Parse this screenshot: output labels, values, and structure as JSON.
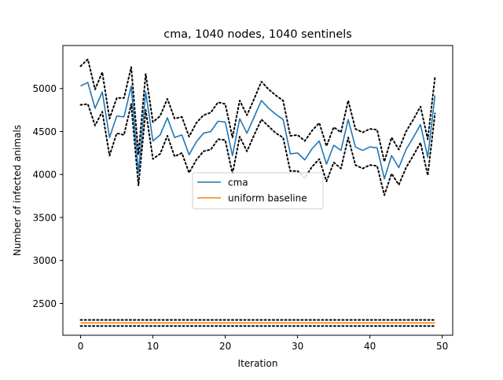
{
  "chart_data": {
    "type": "line",
    "title": "cma, 1040 nodes, 1040 sentinels",
    "xlabel": "Iteration",
    "ylabel": "Number of infected animals",
    "xlim": [
      -2.45,
      51.45
    ],
    "ylim": [
      2130,
      5500
    ],
    "xticks": [
      0,
      10,
      20,
      30,
      40,
      50
    ],
    "yticks": [
      2500,
      3000,
      3500,
      4000,
      4500,
      5000
    ],
    "legend": {
      "placement": "center",
      "entries": [
        "cma",
        "uniform baseline"
      ]
    },
    "colors": {
      "cma": "#1f77b4",
      "uniform baseline": "#ff7f0e",
      "bounds": "#000000"
    },
    "x": [
      0,
      1,
      2,
      3,
      4,
      5,
      6,
      7,
      8,
      9,
      10,
      11,
      12,
      13,
      14,
      15,
      16,
      17,
      18,
      19,
      20,
      21,
      22,
      23,
      24,
      25,
      26,
      27,
      28,
      29,
      30,
      31,
      32,
      33,
      34,
      35,
      36,
      37,
      38,
      39,
      40,
      41,
      42,
      43,
      44,
      45,
      46,
      47,
      48,
      49
    ],
    "series": [
      {
        "name": "cma",
        "style": "solid",
        "color": "#1f77b4",
        "values": [
          5030,
          5070,
          4770,
          4960,
          4430,
          4680,
          4670,
          5030,
          4020,
          4960,
          4390,
          4460,
          4660,
          4430,
          4460,
          4230,
          4380,
          4480,
          4500,
          4620,
          4610,
          4220,
          4650,
          4480,
          4670,
          4860,
          4770,
          4700,
          4640,
          4240,
          4250,
          4170,
          4300,
          4390,
          4120,
          4340,
          4280,
          4640,
          4320,
          4280,
          4320,
          4310,
          3950,
          4220,
          4080,
          4290,
          4430,
          4580,
          4200,
          4920
        ]
      },
      {
        "name": "cma upper bound",
        "style": "dotted",
        "color": "#000000",
        "values": [
          5260,
          5340,
          4990,
          5190,
          4650,
          4890,
          4890,
          5250,
          4230,
          5170,
          4610,
          4680,
          4880,
          4650,
          4670,
          4440,
          4600,
          4690,
          4720,
          4840,
          4820,
          4430,
          4860,
          4690,
          4880,
          5080,
          4990,
          4920,
          4860,
          4450,
          4460,
          4390,
          4510,
          4600,
          4330,
          4550,
          4490,
          4860,
          4530,
          4490,
          4530,
          4520,
          4150,
          4430,
          4290,
          4500,
          4640,
          4790,
          4410,
          5130
        ]
      },
      {
        "name": "cma lower bound",
        "style": "dotted",
        "color": "#000000",
        "values": [
          4810,
          4820,
          4570,
          4730,
          4220,
          4480,
          4460,
          4820,
          3870,
          4750,
          4180,
          4240,
          4450,
          4210,
          4250,
          4020,
          4170,
          4270,
          4290,
          4410,
          4400,
          4010,
          4440,
          4270,
          4460,
          4640,
          4560,
          4480,
          4430,
          4040,
          4040,
          3960,
          4090,
          4180,
          3920,
          4140,
          4070,
          4430,
          4110,
          4070,
          4110,
          4100,
          3760,
          4010,
          3880,
          4080,
          4220,
          4370,
          3990,
          4710
        ]
      },
      {
        "name": "uniform baseline",
        "style": "solid",
        "color": "#ff7f0e",
        "values": [
          2273,
          2273,
          2273,
          2273,
          2273,
          2273,
          2273,
          2273,
          2273,
          2273,
          2273,
          2273,
          2273,
          2273,
          2273,
          2273,
          2273,
          2273,
          2273,
          2273,
          2273,
          2273,
          2273,
          2273,
          2273,
          2273,
          2273,
          2273,
          2273,
          2273,
          2273,
          2273,
          2273,
          2273,
          2273,
          2273,
          2273,
          2273,
          2273,
          2273,
          2273,
          2273,
          2273,
          2273,
          2273,
          2273,
          2273,
          2273,
          2273,
          2273
        ]
      },
      {
        "name": "uniform baseline upper bound",
        "style": "dotted",
        "color": "#000000",
        "values": [
          2308,
          2308,
          2308,
          2308,
          2308,
          2308,
          2308,
          2308,
          2308,
          2308,
          2308,
          2308,
          2308,
          2308,
          2308,
          2308,
          2308,
          2308,
          2308,
          2308,
          2308,
          2308,
          2308,
          2308,
          2308,
          2308,
          2308,
          2308,
          2308,
          2308,
          2308,
          2308,
          2308,
          2308,
          2308,
          2308,
          2308,
          2308,
          2308,
          2308,
          2308,
          2308,
          2308,
          2308,
          2308,
          2308,
          2308,
          2308,
          2308,
          2308
        ]
      },
      {
        "name": "uniform baseline lower bound",
        "style": "dotted",
        "color": "#000000",
        "values": [
          2237,
          2237,
          2237,
          2237,
          2237,
          2237,
          2237,
          2237,
          2237,
          2237,
          2237,
          2237,
          2237,
          2237,
          2237,
          2237,
          2237,
          2237,
          2237,
          2237,
          2237,
          2237,
          2237,
          2237,
          2237,
          2237,
          2237,
          2237,
          2237,
          2237,
          2237,
          2237,
          2237,
          2237,
          2237,
          2237,
          2237,
          2237,
          2237,
          2237,
          2237,
          2237,
          2237,
          2237,
          2237,
          2237,
          2237,
          2237,
          2237,
          2237
        ]
      }
    ]
  }
}
